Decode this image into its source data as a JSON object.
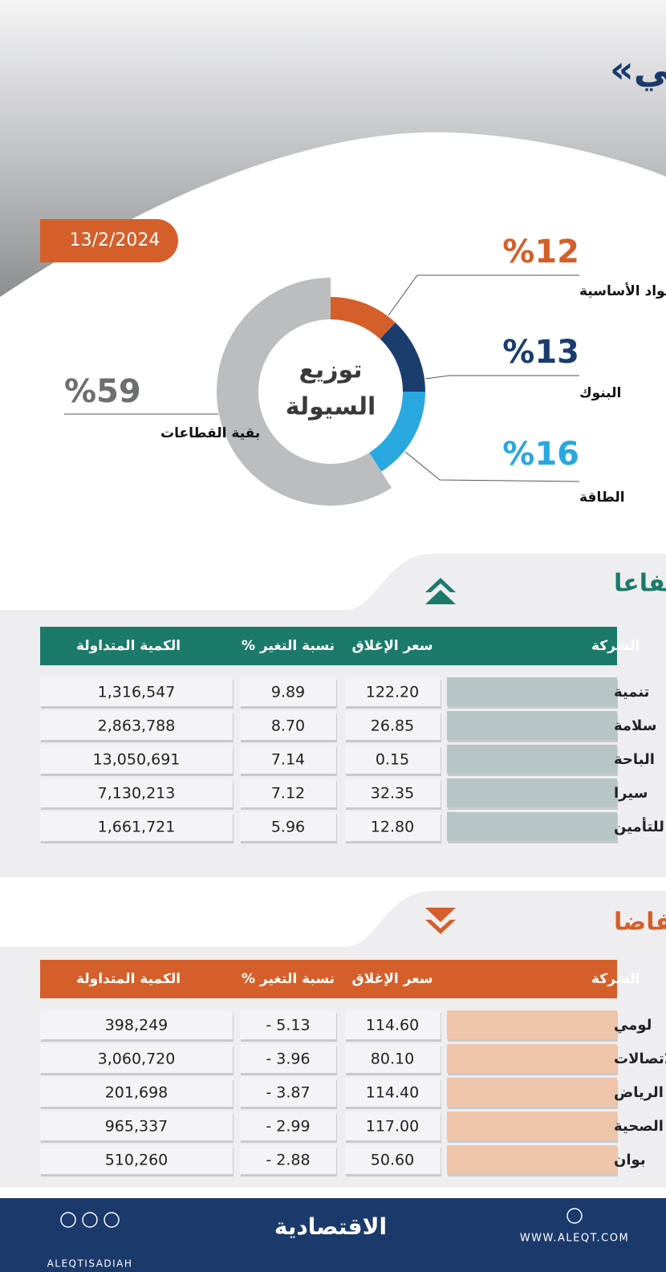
{
  "header": {
    "title": "الأداء اليومي لـ «تاسي»",
    "date": "13/2/2024"
  },
  "chart_data": {
    "type": "donut",
    "title": "توزيع السيولة",
    "categories": [
      "المواد الأساسية",
      "البنوك",
      "الطاقة",
      "بقية القطاعات"
    ],
    "values": [
      12,
      13,
      16,
      59
    ],
    "value_labels": [
      "%12",
      "%13",
      "%16",
      "%59"
    ],
    "colors": [
      "#d45f2a",
      "#1a3d6e",
      "#29a8e0",
      "#bcbdbf"
    ]
  },
  "gainers": {
    "title": "الأكثر ارتفاعا",
    "columns": [
      "الشركة",
      "سعر الإغلاق",
      "نسبة التغير %",
      "الكمية المتداولة"
    ],
    "rows": [
      [
        "تنمية",
        "122.20",
        "9.89",
        "1,316,547"
      ],
      [
        "سلامة",
        "26.85",
        "8.70",
        "2,863,788"
      ],
      [
        "الباحة",
        "0.15",
        "7.14",
        "13,050,691"
      ],
      [
        "سيرا",
        "32.35",
        "7.12",
        "7,130,213"
      ],
      [
        "أمانة للتأمين",
        "12.80",
        "5.96",
        "1,661,721"
      ]
    ]
  },
  "losers": {
    "title": "الأكثر انخفاضا",
    "columns": [
      "الشركة",
      "سعر الإغلاق",
      "نسبة التغير %",
      "الكمية المتداولة"
    ],
    "rows": [
      [
        "لومي",
        "114.60",
        "- 5.13",
        "398,249"
      ],
      [
        "عذيب للاتصالات",
        "80.10",
        "- 3.96",
        "3,060,720"
      ],
      [
        "كابلات الرياض",
        "114.40",
        "- 3.87",
        "201,698"
      ],
      [
        "السعودي الألماني الصحية",
        "117.00",
        "- 2.99",
        "965,337"
      ],
      [
        "بوان",
        "50.60",
        "- 2.88",
        "510,260"
      ]
    ]
  },
  "footer": {
    "brand": "الاقتصادية",
    "handle": "ALEQTISADIAH",
    "website": "WWW.ALEQT.COM"
  }
}
